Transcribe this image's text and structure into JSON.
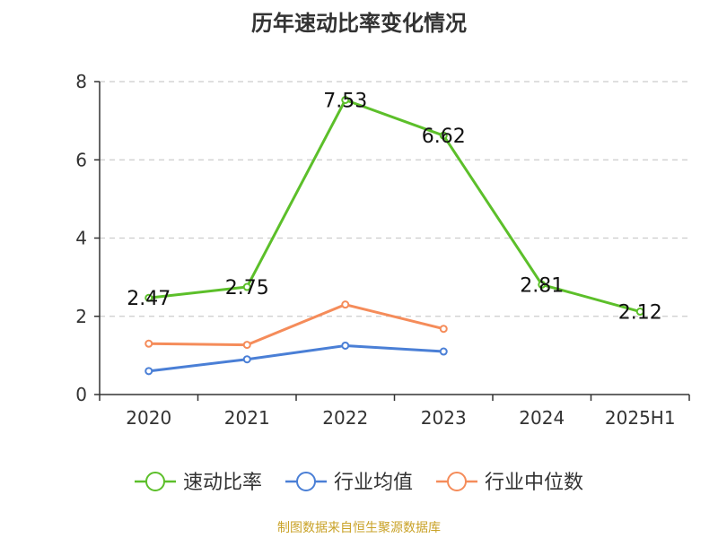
{
  "chart_data": {
    "type": "line",
    "title": "历年速动比率变化情况",
    "categories": [
      "2020",
      "2021",
      "2022",
      "2023",
      "2024",
      "2025H1"
    ],
    "ylim": [
      0,
      8
    ],
    "yticks": [
      0,
      2,
      4,
      6,
      8
    ],
    "grid": true,
    "legend_position": "bottom",
    "series": [
      {
        "name": "速动比率",
        "color": "#5cbf2a",
        "values": [
          2.47,
          2.75,
          7.53,
          6.62,
          2.81,
          2.12
        ],
        "labels": true
      },
      {
        "name": "行业均值",
        "color": "#4a7fd6",
        "values": [
          0.6,
          0.9,
          1.25,
          1.1,
          null,
          null
        ],
        "labels": false
      },
      {
        "name": "行业中位数",
        "color": "#f58c5a",
        "values": [
          1.3,
          1.27,
          2.3,
          1.68,
          null,
          null
        ],
        "labels": false
      }
    ]
  },
  "footer": "制图数据来自恒生聚源数据库"
}
